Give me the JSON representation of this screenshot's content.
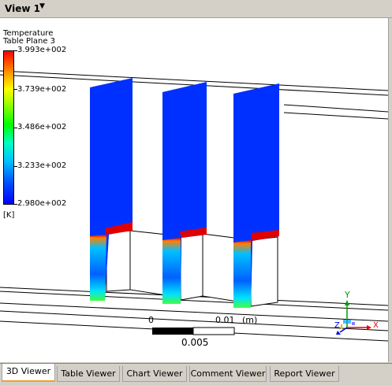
{
  "header": {
    "title": "View 1",
    "dropdown_arrow": "▼"
  },
  "legend": {
    "title_line1": "Temperature",
    "title_line2": "Table Plane 3",
    "values": [
      "3.993e+002",
      "3.739e+002",
      "3.486e+002",
      "3.233e+002",
      "2.980e+002"
    ],
    "unit": "[K]"
  },
  "scale": {
    "zero": "0",
    "max": "0.01",
    "unit": "(m)",
    "mid": "0.005"
  },
  "axes": {
    "y": "Y",
    "x": "X",
    "z": "Z"
  },
  "tabs": [
    {
      "label": "3D Viewer",
      "active": true
    },
    {
      "label": "Table Viewer",
      "active": false
    },
    {
      "label": "Chart Viewer",
      "active": false
    },
    {
      "label": "Comment Viewer",
      "active": false
    },
    {
      "label": "Report Viewer",
      "active": false
    }
  ],
  "colors": {
    "hot": "#ff0000",
    "cold": "#0000ff",
    "axis_y": "#00a000",
    "axis_x": "#e00000",
    "axis_z": "#0000e0",
    "active_tab_accent": "#f0a030"
  }
}
